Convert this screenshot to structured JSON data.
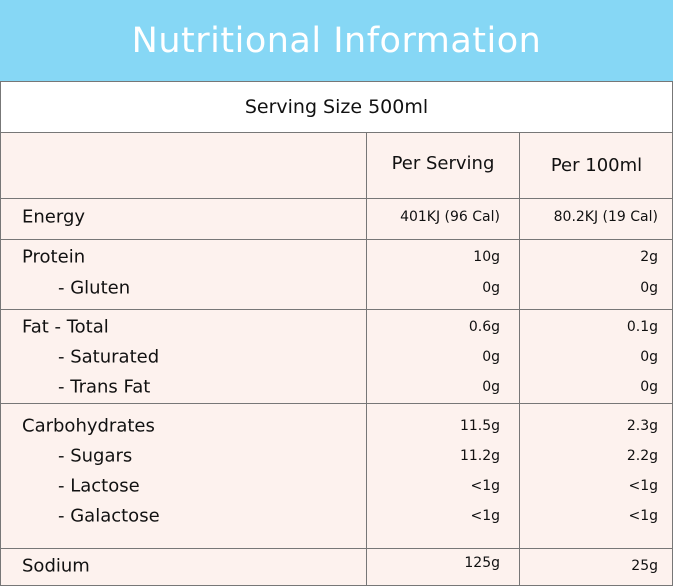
{
  "title": "Nutritional Information",
  "serving_size": "Serving Size 500ml",
  "columns": {
    "per_serving": "Per Serving",
    "per_100ml": "Per 100ml"
  },
  "colors": {
    "header_bg": "#86d7f5",
    "table_bg": "#fdf2ee",
    "border": "#777777"
  },
  "groups": [
    {
      "rows": [
        {
          "label": "Energy",
          "per_serving": "401KJ (96 Cal)",
          "per_100ml": "80.2KJ (19 Cal)"
        }
      ]
    },
    {
      "rows": [
        {
          "label": "Protein",
          "per_serving": "10g",
          "per_100ml": "2g"
        },
        {
          "label": "- Gluten",
          "per_serving": "0g",
          "per_100ml": "0g"
        }
      ]
    },
    {
      "rows": [
        {
          "label": "Fat - Total",
          "per_serving": "0.6g",
          "per_100ml": "0.1g"
        },
        {
          "label": "- Saturated",
          "per_serving": "0g",
          "per_100ml": "0g"
        },
        {
          "label": "- Trans Fat",
          "per_serving": "0g",
          "per_100ml": "0g"
        }
      ]
    },
    {
      "rows": [
        {
          "label": "Carbohydrates",
          "per_serving": "11.5g",
          "per_100ml": "2.3g"
        },
        {
          "label": "- Sugars",
          "per_serving": "11.2g",
          "per_100ml": "2.2g"
        },
        {
          "label": "- Lactose",
          "per_serving": "<1g",
          "per_100ml": "<1g"
        },
        {
          "label": "- Galactose",
          "per_serving": "<1g",
          "per_100ml": "<1g"
        }
      ]
    },
    {
      "rows": [
        {
          "label": "Sodium",
          "per_serving": "125g",
          "per_100ml": "25g"
        }
      ]
    }
  ]
}
